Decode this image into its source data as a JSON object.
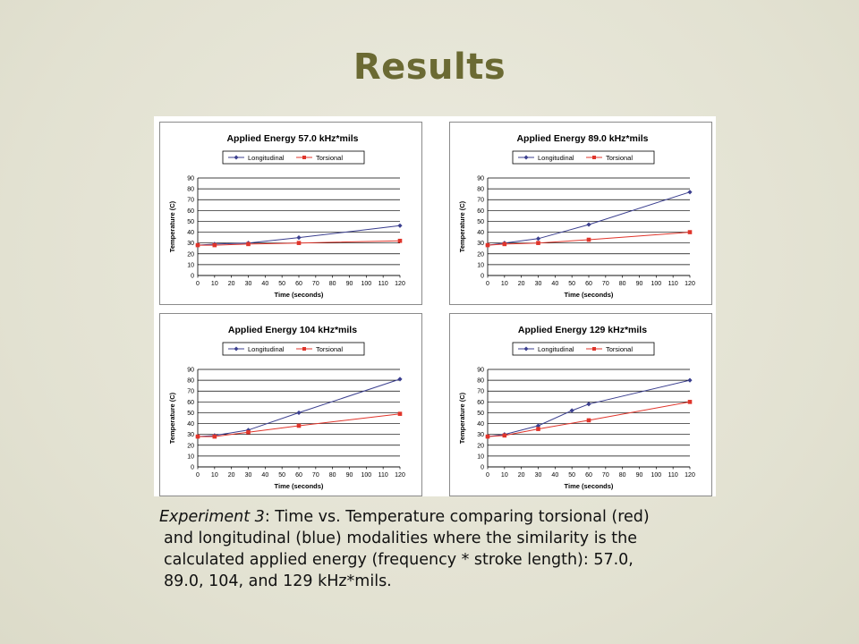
{
  "title": "Results",
  "caption": {
    "experiment": "Experiment 3",
    "line1_rest": ":  Time vs. Temperature comparing torsional (red)",
    "line2": "and longitudinal (blue) modalities where the similarity is the",
    "line3": "calculated applied energy (frequency * stroke length):  57.0,",
    "line4": "89.0, 104, and 129 kHz*mils."
  },
  "colors": {
    "longitudinal": "#3b3f8f",
    "torsional": "#e0352b",
    "grid": "#000000"
  },
  "chart_data": [
    {
      "type": "line",
      "title": "Applied Energy 57.0 kHz*mils",
      "xlabel": "Time (seconds)",
      "ylabel": "Temperature (C)",
      "x_ticks": [
        "0",
        "10",
        "20",
        "30",
        "40",
        "50",
        "60",
        "70",
        "80",
        "90",
        "100",
        "110",
        "120"
      ],
      "y_ticks": [
        0,
        10,
        20,
        30,
        40,
        50,
        60,
        70,
        80,
        90
      ],
      "xlim": [
        0,
        120
      ],
      "ylim": [
        0,
        90
      ],
      "grid": true,
      "legend": "top",
      "series": [
        {
          "name": "Longitudinal",
          "marker": "diamond",
          "x": [
            0,
            10,
            30,
            60,
            120
          ],
          "y": [
            28,
            29,
            30,
            35,
            46
          ]
        },
        {
          "name": "Torsional",
          "marker": "square",
          "x": [
            0,
            10,
            30,
            60,
            120
          ],
          "y": [
            28,
            28,
            29,
            30,
            32
          ]
        }
      ]
    },
    {
      "type": "line",
      "title": "Applied Energy 89.0 kHz*mils",
      "xlabel": "Time (seconds)",
      "ylabel": "Temperature (C)",
      "x_ticks": [
        "0",
        "10",
        "20",
        "30",
        "40",
        "50",
        "60",
        "70",
        "80",
        "90",
        "100",
        "110",
        "120"
      ],
      "y_ticks": [
        0,
        10,
        20,
        30,
        40,
        50,
        60,
        70,
        80,
        90
      ],
      "xlim": [
        0,
        120
      ],
      "ylim": [
        0,
        90
      ],
      "grid": true,
      "legend": "top",
      "series": [
        {
          "name": "Longitudinal",
          "marker": "diamond",
          "x": [
            0,
            10,
            30,
            60,
            120
          ],
          "y": [
            28,
            30,
            34,
            47,
            77
          ]
        },
        {
          "name": "Torsional",
          "marker": "square",
          "x": [
            0,
            10,
            30,
            60,
            120
          ],
          "y": [
            28,
            29,
            30,
            33,
            40
          ]
        }
      ]
    },
    {
      "type": "line",
      "title": "Applied Energy 104 kHz*mils",
      "xlabel": "Time (seconds)",
      "ylabel": "Temperature (C)",
      "x_ticks": [
        "0",
        "10",
        "20",
        "30",
        "40",
        "50",
        "60",
        "70",
        "80",
        "90",
        "100",
        "110",
        "120"
      ],
      "y_ticks": [
        0,
        10,
        20,
        30,
        40,
        50,
        60,
        70,
        80,
        90
      ],
      "xlim": [
        0,
        120
      ],
      "ylim": [
        0,
        90
      ],
      "grid": true,
      "legend": "top",
      "series": [
        {
          "name": "Longitudinal",
          "marker": "diamond",
          "x": [
            0,
            10,
            30,
            60,
            120
          ],
          "y": [
            28,
            29,
            34,
            50,
            81
          ]
        },
        {
          "name": "Torsional",
          "marker": "square",
          "x": [
            0,
            10,
            30,
            60,
            120
          ],
          "y": [
            28,
            28,
            32,
            38,
            49
          ]
        }
      ]
    },
    {
      "type": "line",
      "title": "Applied Energy 129 kHz*mils",
      "xlabel": "Time (seconds)",
      "ylabel": "Temperature (C)",
      "x_ticks": [
        "0",
        "10",
        "20",
        "30",
        "40",
        "50",
        "60",
        "70",
        "80",
        "90",
        "100",
        "110",
        "120"
      ],
      "y_ticks": [
        0,
        10,
        20,
        30,
        40,
        50,
        60,
        70,
        80,
        90
      ],
      "xlim": [
        0,
        120
      ],
      "ylim": [
        0,
        90
      ],
      "grid": true,
      "legend": "top",
      "series": [
        {
          "name": "Longitudinal",
          "marker": "diamond",
          "x": [
            0,
            10,
            30,
            50,
            60,
            120
          ],
          "y": [
            28,
            30,
            38,
            52,
            58,
            80
          ]
        },
        {
          "name": "Torsional",
          "marker": "square",
          "x": [
            0,
            10,
            30,
            60,
            120
          ],
          "y": [
            28,
            29,
            35,
            43,
            60
          ]
        }
      ]
    }
  ]
}
